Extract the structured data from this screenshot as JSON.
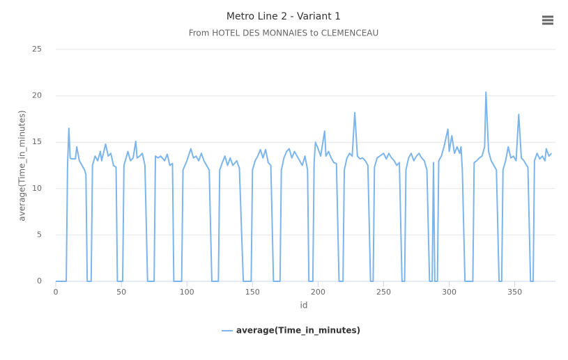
{
  "chart_data": {
    "type": "line",
    "title": "Metro Line 2 - Variant 1",
    "subtitle": "From HOTEL DES MONNAIES to CLEMENCEAU",
    "x_label": "id",
    "y_label": "average(Time_in_minutes)",
    "x": [
      0,
      8,
      9,
      10,
      11,
      12,
      15,
      16,
      18,
      20,
      22,
      23,
      24,
      27,
      28,
      30,
      32,
      34,
      35,
      38,
      40,
      42,
      44,
      46,
      47,
      51,
      52,
      54,
      55,
      57,
      59,
      61,
      62,
      64,
      66,
      68,
      70,
      75,
      76,
      78,
      80,
      83,
      85,
      87,
      89,
      90,
      96,
      97,
      100,
      103,
      105,
      107,
      109,
      111,
      113,
      115,
      117,
      119,
      124,
      125,
      127,
      129,
      131,
      133,
      135,
      138,
      140,
      143,
      149,
      150,
      152,
      154,
      156,
      158,
      160,
      162,
      164,
      166,
      171,
      172,
      174,
      176,
      178,
      180,
      182,
      184,
      186,
      188,
      190,
      192,
      193,
      196,
      197,
      198,
      200,
      202,
      205,
      206,
      208,
      210,
      212,
      214,
      216,
      219,
      220,
      222,
      224,
      226,
      228,
      230,
      232,
      234,
      236,
      238,
      240,
      242,
      243,
      245,
      247,
      250,
      252,
      254,
      256,
      258,
      260,
      262,
      264,
      266,
      267,
      269,
      271,
      273,
      275,
      277,
      279,
      281,
      283,
      285,
      287,
      288,
      289,
      291,
      292,
      294,
      296,
      299,
      300,
      302,
      304,
      306,
      308,
      309,
      310,
      312,
      318,
      319,
      321,
      323,
      325,
      327,
      328,
      330,
      332,
      334,
      336,
      338,
      340,
      341,
      343,
      345,
      347,
      349,
      351,
      353,
      355,
      357,
      359,
      360,
      362,
      364,
      365,
      367,
      369,
      371,
      373,
      374,
      376,
      378
    ],
    "series": [
      {
        "name": "average(Time_in_minutes)",
        "color": "#7cb5ec",
        "values": [
          0,
          0,
          12.5,
          16.5,
          13.3,
          13.2,
          13.2,
          14.5,
          13,
          12.5,
          12,
          11.5,
          0,
          0,
          12.5,
          13.5,
          13,
          14,
          13,
          14.8,
          13.5,
          13.8,
          12.5,
          12.3,
          0,
          0,
          12.5,
          13.5,
          14,
          13,
          13.3,
          15.1,
          13.3,
          13.5,
          13.8,
          12.5,
          0,
          0,
          13.5,
          13.3,
          13.5,
          13,
          13.7,
          12.5,
          12.7,
          0,
          0,
          12,
          13,
          14.3,
          13.3,
          13.5,
          13,
          13.8,
          13,
          12.5,
          12,
          0,
          0,
          12,
          12.8,
          13.5,
          12.5,
          13.3,
          12.5,
          13,
          12.2,
          0,
          0,
          12,
          13,
          13.5,
          14.2,
          13.3,
          14.2,
          12.8,
          12.5,
          0,
          0,
          12,
          13.3,
          14,
          14.3,
          13.3,
          14,
          13.5,
          13,
          12.5,
          13.5,
          12,
          0,
          0,
          12.8,
          15,
          14.3,
          13.5,
          16.2,
          13.5,
          14,
          13.3,
          12.8,
          12.7,
          0,
          0,
          12,
          13.3,
          13.8,
          13.5,
          18.2,
          13.5,
          13.2,
          13.3,
          13,
          12.5,
          0,
          0,
          12.3,
          13.3,
          13.5,
          13.8,
          13.2,
          13.8,
          13.3,
          13,
          12.5,
          12.8,
          0,
          0,
          12,
          13.3,
          13.8,
          13,
          13.5,
          13.8,
          13.3,
          13,
          12,
          0,
          0,
          12.8,
          0,
          0,
          13,
          13.5,
          14.5,
          16.4,
          14,
          15.7,
          13.8,
          14.5,
          13.8,
          14.5,
          12,
          0,
          0,
          12.8,
          13,
          13.3,
          13.5,
          14.5,
          20.4,
          14,
          13,
          12.5,
          12,
          0,
          0,
          12,
          13,
          14.5,
          13.3,
          13.5,
          13,
          18,
          13.3,
          13,
          12.5,
          12.3,
          0,
          0,
          13,
          13.8,
          13.2,
          13.5,
          13,
          14.3,
          13.5,
          13.8
        ]
      }
    ],
    "xlim": [
      0,
      381
    ],
    "xticks": [
      0,
      50,
      100,
      150,
      200,
      250,
      300,
      350
    ],
    "ylim": [
      0,
      25
    ],
    "yticks": [
      0,
      5,
      10,
      15,
      20,
      25
    ],
    "grid": true,
    "legend": "bottom"
  }
}
